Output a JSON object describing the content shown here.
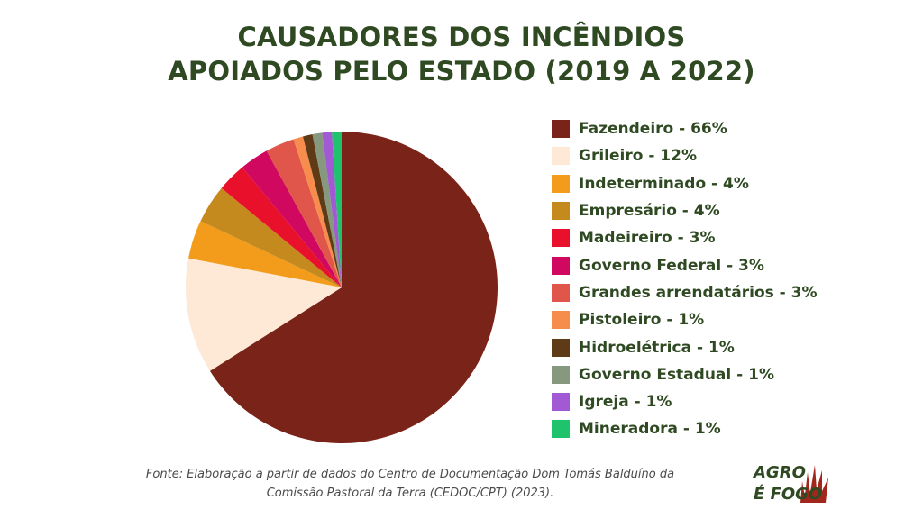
{
  "title": {
    "line1": "CAUSADORES DOS INCÊNDIOS",
    "line2": "APOIADOS PELO ESTADO (2019 A 2022)"
  },
  "chart_data": {
    "type": "pie",
    "title": "CAUSADORES DOS INCÊNDIOS APOIADOS PELO ESTADO (2019 A 2022)",
    "legend_position": "right",
    "slices": [
      {
        "label": "Fazendeiro - 66%",
        "name": "Fazendeiro",
        "value": 66,
        "color": "#7a2318"
      },
      {
        "label": "Grileiro - 12%",
        "name": "Grileiro",
        "value": 12,
        "color": "#fde9d5"
      },
      {
        "label": "Indeterminado - 4%",
        "name": "Indeterminado",
        "value": 4,
        "color": "#f39c1b"
      },
      {
        "label": "Empresário - 4%",
        "name": "Empresário",
        "value": 4,
        "color": "#c48a1e"
      },
      {
        "label": "Madeireiro - 3%",
        "name": "Madeireiro",
        "value": 3,
        "color": "#e8102a"
      },
      {
        "label": "Governo Federal - 3%",
        "name": "Governo Federal",
        "value": 3,
        "color": "#d1085f"
      },
      {
        "label": "Grandes arrendatários - 3%",
        "name": "Grandes arrendatários",
        "value": 3,
        "color": "#e0564a"
      },
      {
        "label": "Pistoleiro - 1%",
        "name": "Pistoleiro",
        "value": 1,
        "color": "#f78d4d"
      },
      {
        "label": "Hidroelétrica - 1%",
        "name": "Hidroelétrica",
        "value": 1,
        "color": "#5e3a16"
      },
      {
        "label": "Governo Estadual - 1%",
        "name": "Governo Estadual",
        "value": 1,
        "color": "#86987e"
      },
      {
        "label": "Igreja - 1%",
        "name": "Igreja",
        "value": 1,
        "color": "#a25ad4"
      },
      {
        "label": "Mineradora - 1%",
        "name": "Mineradora",
        "value": 1,
        "color": "#1fc36c"
      }
    ]
  },
  "source": {
    "line1": "Fonte: Elaboração a partir de dados do Centro de Documentação Dom Tomás Balduíno da",
    "line2": "Comissão Pastoral da Terra (CEDOC/CPT) (2023)."
  },
  "logo": {
    "line1": "AGRO",
    "line2": "É FOGO",
    "colors": {
      "text": "#2f4a22",
      "flame": "#a3261c"
    }
  }
}
